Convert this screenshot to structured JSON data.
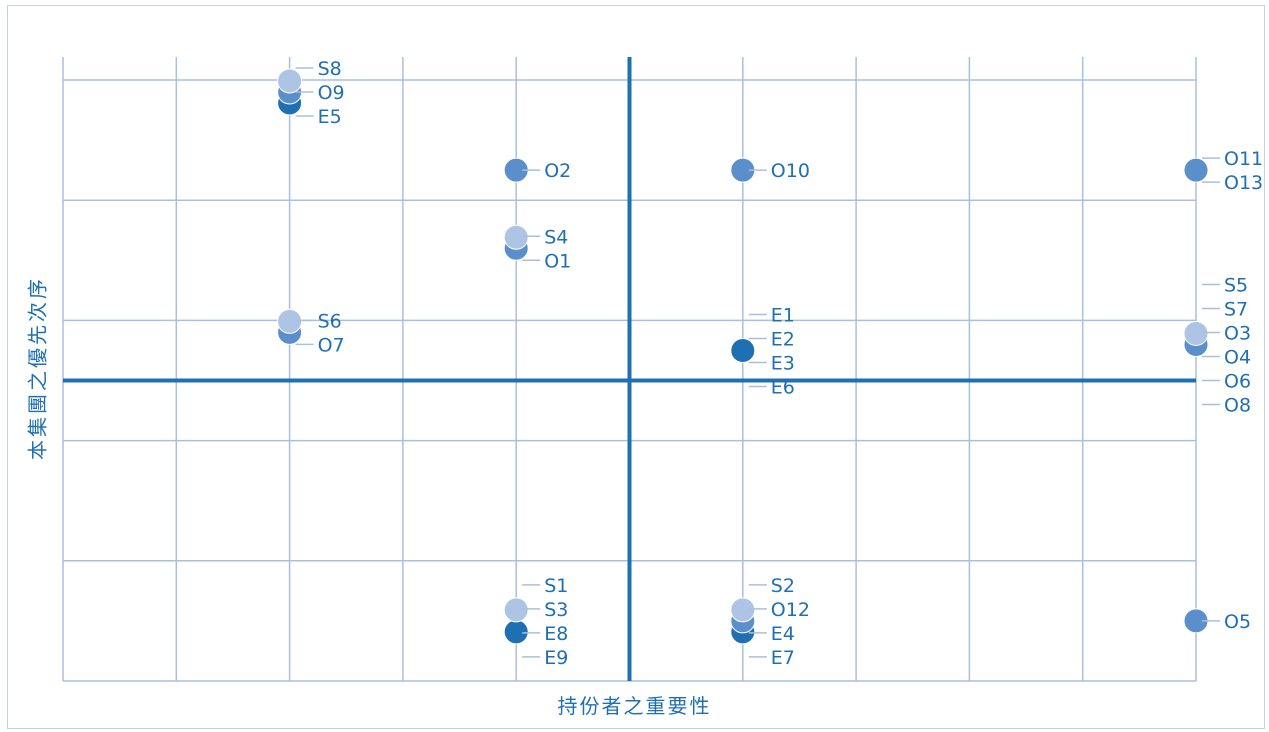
{
  "chart_data": {
    "type": "scatter",
    "xlabel": "持份者之重要性",
    "ylabel": "本集團之優先次序",
    "xlim": [
      0,
      10
    ],
    "ylim": [
      0,
      10
    ],
    "grid": true,
    "quadrant_lines": {
      "x": 5,
      "y": 5
    },
    "colors": {
      "grid": "#a9bfdf",
      "axis": "#1f6fb3",
      "text": "#1f6fb3",
      "S": "#adc4e4",
      "O": "#5b8fcc",
      "E": "#1f6fb3"
    },
    "groups": [
      {
        "x": 2,
        "y": 9.8,
        "labels": [
          {
            "text": "S8",
            "cat": "S"
          },
          {
            "text": "O9",
            "cat": "O"
          },
          {
            "text": "E5",
            "cat": "E"
          }
        ]
      },
      {
        "x": 4,
        "y": 8.5,
        "labels": [
          {
            "text": "O2",
            "cat": "O"
          }
        ]
      },
      {
        "x": 6,
        "y": 8.5,
        "labels": [
          {
            "text": "O10",
            "cat": "O"
          }
        ]
      },
      {
        "x": 10,
        "y": 8.5,
        "labels": [
          {
            "text": "O11",
            "cat": "O"
          },
          {
            "text": "O13",
            "cat": "O"
          }
        ]
      },
      {
        "x": 4,
        "y": 7.2,
        "labels": [
          {
            "text": "S4",
            "cat": "S"
          },
          {
            "text": "O1",
            "cat": "O"
          }
        ]
      },
      {
        "x": 2,
        "y": 5.8,
        "labels": [
          {
            "text": "S6",
            "cat": "S"
          },
          {
            "text": "O7",
            "cat": "O"
          }
        ]
      },
      {
        "x": 6,
        "y": 5.5,
        "labels": [
          {
            "text": "E1",
            "cat": "E"
          },
          {
            "text": "E2",
            "cat": "E"
          },
          {
            "text": "E3",
            "cat": "E"
          },
          {
            "text": "E6",
            "cat": "E"
          }
        ]
      },
      {
        "x": 10,
        "y": 5.6,
        "labels": [
          {
            "text": "S5",
            "cat": "S"
          },
          {
            "text": "S7",
            "cat": "S"
          },
          {
            "text": "O3",
            "cat": "O"
          },
          {
            "text": "O4",
            "cat": "O"
          },
          {
            "text": "O6",
            "cat": "O"
          },
          {
            "text": "O8",
            "cat": "O"
          }
        ]
      },
      {
        "x": 4,
        "y": 1,
        "labels": [
          {
            "text": "S1",
            "cat": "S"
          },
          {
            "text": "S3",
            "cat": "S"
          },
          {
            "text": "E8",
            "cat": "E"
          },
          {
            "text": "E9",
            "cat": "E"
          }
        ]
      },
      {
        "x": 6,
        "y": 1,
        "labels": [
          {
            "text": "S2",
            "cat": "S"
          },
          {
            "text": "O12",
            "cat": "O"
          },
          {
            "text": "E4",
            "cat": "E"
          },
          {
            "text": "E7",
            "cat": "E"
          }
        ]
      },
      {
        "x": 10,
        "y": 1,
        "labels": [
          {
            "text": "O5",
            "cat": "O"
          }
        ]
      }
    ]
  }
}
